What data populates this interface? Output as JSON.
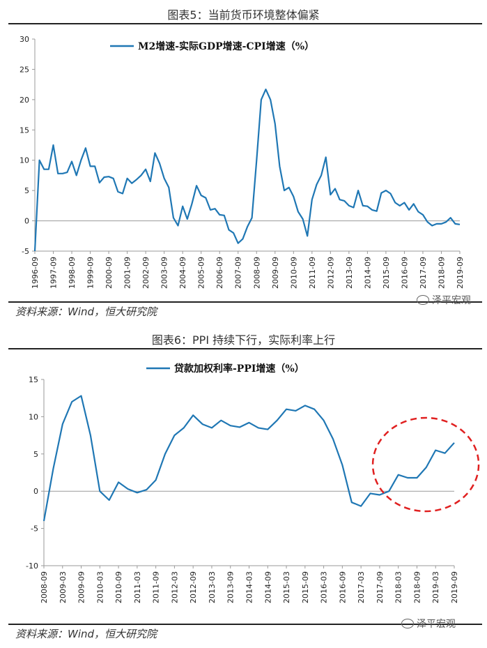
{
  "figure5": {
    "title": "图表5：当前货币环境整体偏紧",
    "source": "资料来源：Wind，恒大研究院",
    "watermark": "泽平宏观"
  },
  "figure6": {
    "title": "图表6：PPI 持续下行，实际利率上行",
    "source": "资料来源：Wind，恒大研究院",
    "watermark": "泽平宏观"
  },
  "colors": {
    "line": "#1f77b4",
    "highlight": "#e02020",
    "axis": "#999999"
  },
  "chart_data": [
    {
      "type": "line",
      "title": "",
      "legend": "M2增速-实际GDP增速-CPI增速（%）",
      "legend_position": "top-center",
      "grid": false,
      "ylim": [
        -5,
        30
      ],
      "yticks": [
        -5,
        0,
        5,
        10,
        15,
        20,
        25,
        30
      ],
      "xlim": [
        "1996-09",
        "2019-09"
      ],
      "xticks": [
        "1996-09",
        "1997-09",
        "1998-09",
        "1999-09",
        "2000-09",
        "2001-09",
        "2002-09",
        "2003-09",
        "2004-09",
        "2005-09",
        "2006-09",
        "2007-09",
        "2008-09",
        "2009-09",
        "2010-09",
        "2011-09",
        "2012-09",
        "2013-09",
        "2014-09",
        "2015-09",
        "2016-09",
        "2017-09",
        "2018-09",
        "2019-09"
      ],
      "series": [
        {
          "name": "M2增速-实际GDP增速-CPI增速（%）",
          "x": [
            "1996-09",
            "1996-12",
            "1997-03",
            "1997-06",
            "1997-09",
            "1997-12",
            "1998-03",
            "1998-06",
            "1998-09",
            "1998-12",
            "1999-03",
            "1999-06",
            "1999-09",
            "1999-12",
            "2000-03",
            "2000-06",
            "2000-09",
            "2000-12",
            "2001-03",
            "2001-06",
            "2001-09",
            "2001-12",
            "2002-03",
            "2002-06",
            "2002-09",
            "2002-12",
            "2003-03",
            "2003-06",
            "2003-09",
            "2003-12",
            "2004-03",
            "2004-06",
            "2004-09",
            "2004-12",
            "2005-03",
            "2005-06",
            "2005-09",
            "2005-12",
            "2006-03",
            "2006-06",
            "2006-09",
            "2006-12",
            "2007-03",
            "2007-06",
            "2007-09",
            "2007-12",
            "2008-03",
            "2008-06",
            "2008-09",
            "2008-12",
            "2009-03",
            "2009-06",
            "2009-09",
            "2009-12",
            "2010-03",
            "2010-06",
            "2010-09",
            "2010-12",
            "2011-03",
            "2011-06",
            "2011-09",
            "2011-12",
            "2012-03",
            "2012-06",
            "2012-09",
            "2012-12",
            "2013-03",
            "2013-06",
            "2013-09",
            "2013-12",
            "2014-03",
            "2014-06",
            "2014-09",
            "2014-12",
            "2015-03",
            "2015-06",
            "2015-09",
            "2015-12",
            "2016-03",
            "2016-06",
            "2016-09",
            "2016-12",
            "2017-03",
            "2017-06",
            "2017-09",
            "2017-12",
            "2018-03",
            "2018-06",
            "2018-09",
            "2018-12",
            "2019-03",
            "2019-06",
            "2019-09"
          ],
          "values": [
            -5.0,
            10.0,
            8.5,
            8.5,
            12.5,
            7.8,
            7.8,
            8.0,
            9.8,
            7.5,
            10.0,
            12.0,
            9.0,
            9.0,
            6.3,
            7.2,
            7.3,
            7.0,
            4.8,
            4.5,
            7.0,
            6.2,
            6.8,
            7.5,
            8.5,
            6.5,
            11.2,
            9.5,
            7.0,
            5.5,
            0.5,
            -0.8,
            2.4,
            0.3,
            2.8,
            5.8,
            4.2,
            3.8,
            1.8,
            2.0,
            1.0,
            0.9,
            -1.5,
            -2.0,
            -3.7,
            -3.0,
            -1.0,
            0.5,
            10.0,
            20.0,
            21.7,
            20.0,
            16.0,
            9.0,
            5.0,
            5.5,
            4.0,
            1.5,
            0.3,
            -2.5,
            3.5,
            6.0,
            7.5,
            10.5,
            4.3,
            5.3,
            3.5,
            3.3,
            2.5,
            2.2,
            5.0,
            2.5,
            2.4,
            1.8,
            1.6,
            4.6,
            5.0,
            4.5,
            3.0,
            2.5,
            3.0,
            1.8,
            2.8,
            1.5,
            1.0,
            -0.2,
            -0.8,
            -0.5,
            -0.5,
            -0.2,
            0.5,
            -0.5,
            -0.6
          ]
        }
      ]
    },
    {
      "type": "line",
      "title": "",
      "legend": "贷款加权利率-PPI增速（%）",
      "legend_position": "top-center",
      "grid": false,
      "ylim": [
        -10,
        15
      ],
      "yticks": [
        -10,
        -5,
        0,
        5,
        10,
        15
      ],
      "xlim": [
        "2008-09",
        "2019-09"
      ],
      "xticks": [
        "2008-09",
        "2009-03",
        "2009-09",
        "2010-03",
        "2010-09",
        "2011-03",
        "2011-09",
        "2012-03",
        "2012-09",
        "2013-03",
        "2013-09",
        "2014-03",
        "2014-09",
        "2015-03",
        "2015-09",
        "2016-03",
        "2016-09",
        "2017-03",
        "2017-09",
        "2018-03",
        "2018-09",
        "2019-03",
        "2019-09"
      ],
      "annotation": "red dashed ellipse around 2017-09 to 2019-09",
      "series": [
        {
          "name": "贷款加权利率-PPI增速（%）",
          "x": [
            "2008-09",
            "2008-12",
            "2009-03",
            "2009-06",
            "2009-09",
            "2009-12",
            "2010-03",
            "2010-06",
            "2010-09",
            "2010-12",
            "2011-03",
            "2011-06",
            "2011-09",
            "2011-12",
            "2012-03",
            "2012-06",
            "2012-09",
            "2012-12",
            "2013-03",
            "2013-06",
            "2013-09",
            "2013-12",
            "2014-03",
            "2014-06",
            "2014-09",
            "2014-12",
            "2015-03",
            "2015-06",
            "2015-09",
            "2015-12",
            "2016-03",
            "2016-06",
            "2016-09",
            "2016-12",
            "2017-03",
            "2017-06",
            "2017-09",
            "2017-12",
            "2018-03",
            "2018-06",
            "2018-09",
            "2018-12",
            "2019-03",
            "2019-06",
            "2019-09"
          ],
          "values": [
            -4.0,
            3.0,
            9.0,
            12.0,
            12.8,
            7.5,
            0.0,
            -1.2,
            1.2,
            0.3,
            -0.2,
            0.2,
            1.5,
            5.0,
            7.5,
            8.5,
            10.2,
            9.0,
            8.5,
            9.5,
            8.8,
            8.6,
            9.2,
            8.5,
            8.3,
            9.5,
            11.0,
            10.8,
            11.5,
            11.0,
            9.5,
            7.0,
            3.5,
            -1.5,
            -2.0,
            -0.3,
            -0.5,
            0.0,
            2.2,
            1.8,
            1.8,
            3.2,
            5.5,
            5.1,
            6.5
          ]
        }
      ]
    }
  ]
}
